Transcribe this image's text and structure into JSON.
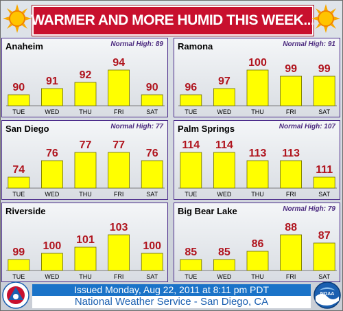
{
  "banner": {
    "title": "WARMER AND MORE HUMID THIS WEEK..."
  },
  "footer": {
    "issued": "Issued Monday, Aug 22, 2011 at 8:11 pm PDT",
    "office": "National Weather Service - San Diego, CA"
  },
  "logos": {
    "left": "NATIONAL WEATHER SERVICE",
    "right": "NOAA"
  },
  "colors": {
    "banner": "#c8102e",
    "bar": "#ffff00",
    "value_text": "#b0141e",
    "normal_text": "#4b2a7f",
    "footer_band": "#1a73c8"
  },
  "icons": {
    "banner_left": "sun-icon",
    "banner_right": "sun-icon"
  },
  "chart_data": [
    {
      "type": "bar",
      "title": "Anaheim",
      "subtitle": "Normal High: 89",
      "categories": [
        "TUE",
        "WED",
        "THU",
        "FRI",
        "SAT"
      ],
      "values": [
        90,
        91,
        92,
        94,
        90
      ],
      "value_labels": [
        "90",
        "91",
        "92",
        "94",
        "90"
      ]
    },
    {
      "type": "bar",
      "title": "Ramona",
      "subtitle": "Normal High: 91",
      "categories": [
        "TUE",
        "WED",
        "THU",
        "FRI",
        "SAT"
      ],
      "values": [
        96,
        97,
        100,
        99,
        99
      ],
      "value_labels": [
        "96",
        "97",
        "100",
        "99",
        "99"
      ]
    },
    {
      "type": "bar",
      "title": "San Diego",
      "subtitle": "Normal High: 77",
      "categories": [
        "TUE",
        "WED",
        "THU",
        "FRI",
        "SAT"
      ],
      "values": [
        74,
        76,
        77,
        77,
        76
      ],
      "value_labels": [
        "74",
        "76",
        "77",
        "77",
        "76"
      ]
    },
    {
      "type": "bar",
      "title": "Palm Springs",
      "subtitle": "Normal High: 107",
      "categories": [
        "TUE",
        "WED",
        "THU",
        "FRI",
        "SAT"
      ],
      "values": [
        114,
        114,
        113,
        113,
        111
      ],
      "value_labels": [
        "114",
        "114",
        "113",
        "113",
        "111"
      ]
    },
    {
      "type": "bar",
      "title": "Riverside",
      "subtitle": "",
      "categories": [
        "TUE",
        "WED",
        "THU",
        "FRI",
        "SAT"
      ],
      "values": [
        99,
        100,
        101,
        103,
        100
      ],
      "value_labels": [
        "99",
        "100",
        "101",
        "103",
        "100"
      ]
    },
    {
      "type": "bar",
      "title": "Big Bear Lake",
      "subtitle": "Normal High: 79",
      "categories": [
        "TUE",
        "WED",
        "THU",
        "FRI",
        "SAT"
      ],
      "values": [
        85,
        85,
        86,
        88,
        87
      ],
      "value_labels": [
        "85",
        "85",
        "86",
        "88",
        "87"
      ]
    }
  ]
}
